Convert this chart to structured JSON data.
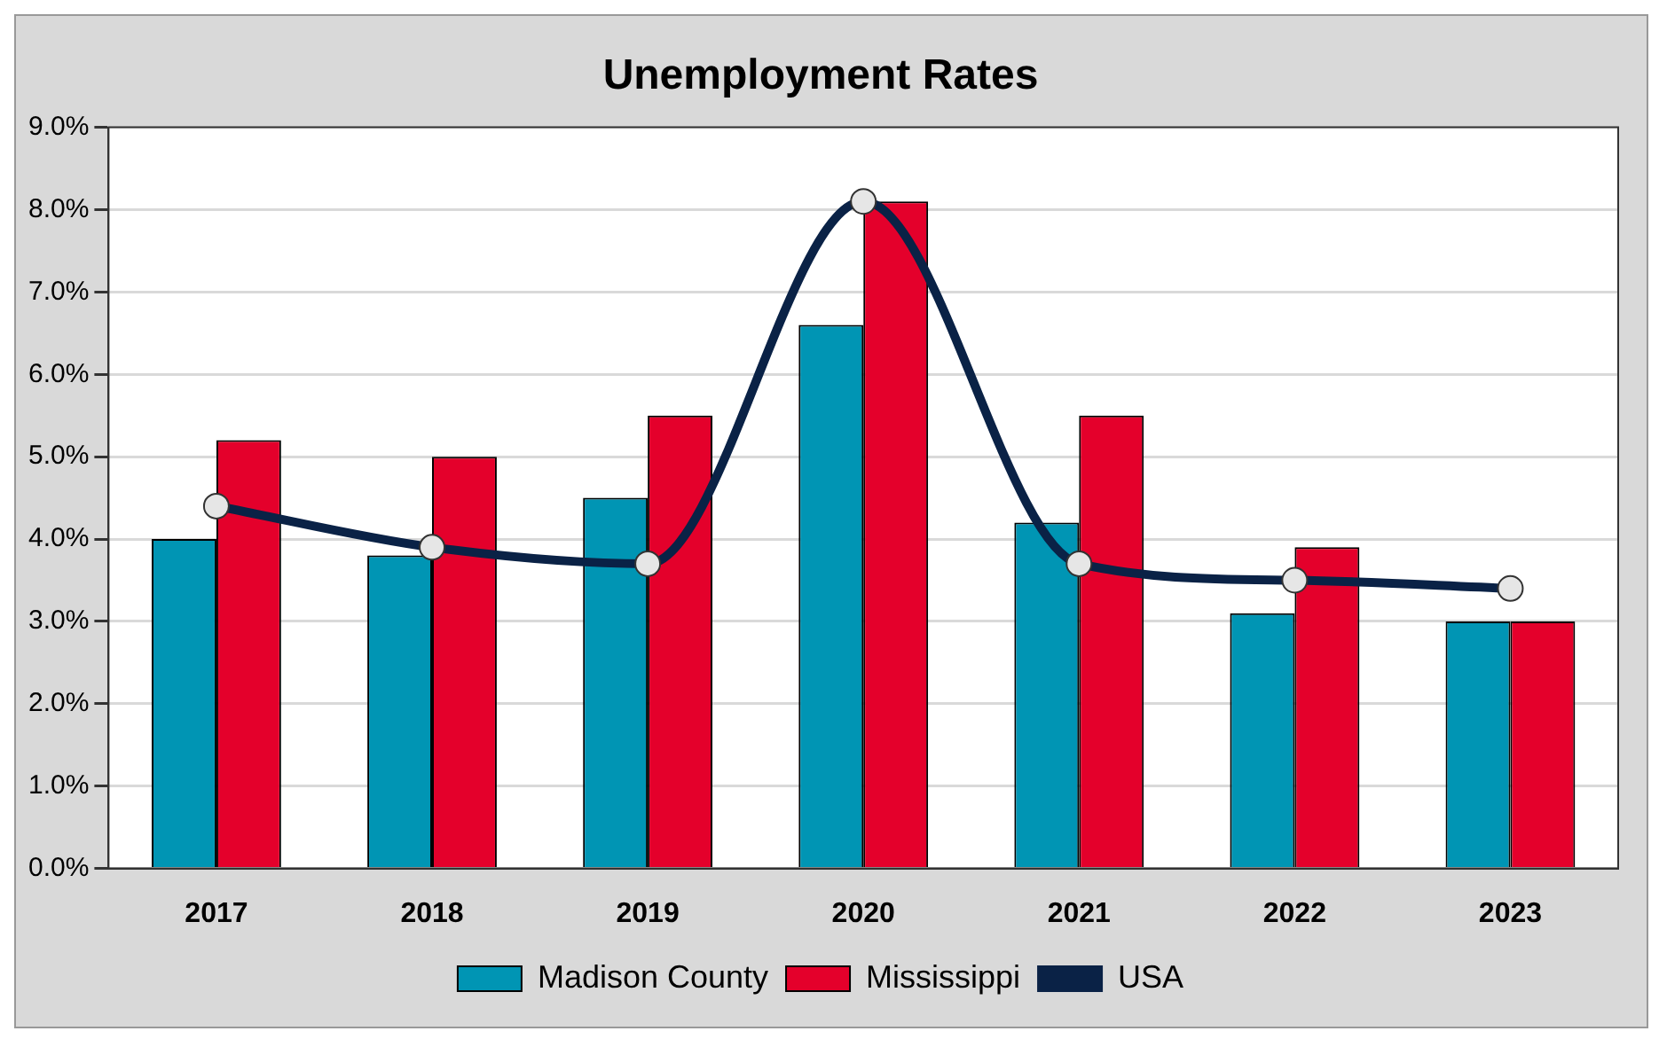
{
  "chart_data": {
    "type": "bar",
    "title": "Unemployment Rates",
    "categories": [
      "2017",
      "2018",
      "2019",
      "2020",
      "2021",
      "2022",
      "2023"
    ],
    "series": [
      {
        "name": "Madison County",
        "color": "#0095b4",
        "values": [
          4.0,
          3.8,
          4.5,
          6.6,
          4.2,
          3.1,
          3.0
        ]
      },
      {
        "name": "Mississippi",
        "color": "#e4002b",
        "values": [
          5.2,
          5.0,
          5.5,
          8.1,
          5.5,
          3.9,
          3.0
        ]
      },
      {
        "name": "USA",
        "type": "line",
        "color": "#0a2246",
        "marker": "circle",
        "line_style": "solid",
        "values": [
          4.4,
          3.9,
          3.7,
          8.1,
          3.7,
          3.5,
          3.4
        ]
      }
    ],
    "ylim": [
      0,
      9
    ],
    "yticks": [
      {
        "value": 0,
        "label": "0.0%"
      },
      {
        "value": 1,
        "label": "1.0%"
      },
      {
        "value": 2,
        "label": "2.0%"
      },
      {
        "value": 3,
        "label": "3.0%"
      },
      {
        "value": 4,
        "label": "4.0%"
      },
      {
        "value": 5,
        "label": "5.0%"
      },
      {
        "value": 6,
        "label": "6.0%"
      },
      {
        "value": 7,
        "label": "7.0%"
      },
      {
        "value": 8,
        "label": "8.0%"
      },
      {
        "value": 9,
        "label": "9.0%"
      }
    ],
    "grid": "y",
    "legend": "bottom"
  }
}
